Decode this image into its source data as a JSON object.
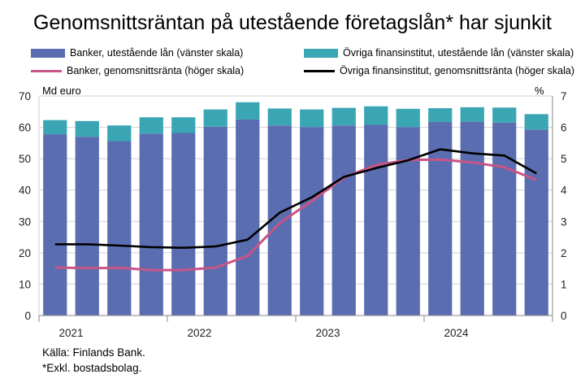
{
  "title": "Genomsnittsräntan på utestående företagslån* har sjunkit",
  "legend": {
    "banks_loans": "Banker, utestående lån (vänster skala)",
    "other_loans": "Övriga finansinstitut, utestående lån (vänster skala)",
    "banks_rate": "Banker, genomsnittsränta (höger skala)",
    "other_rate": "Övriga finansinstitut, genomsnittsränta (höger skala)"
  },
  "left_unit": "Md euro",
  "right_unit": "%",
  "source": "Källa: Finlands Bank.",
  "footnote": "*Exkl. bostadsbolag.",
  "colors": {
    "banks_bar": "#5b6db1",
    "other_bar": "#3aa6b4",
    "banks_line": "#c75586",
    "other_line": "#000000",
    "grid": "#d0d0d0"
  },
  "chart_data": {
    "type": "bar",
    "stacked": true,
    "categories": [
      "2021Q1",
      "2021Q2",
      "2021Q3",
      "2021Q4",
      "2022Q1",
      "2022Q2",
      "2022Q3",
      "2022Q4",
      "2023Q1",
      "2023Q2",
      "2023Q3",
      "2023Q4",
      "2024Q1",
      "2024Q2",
      "2024Q3",
      "2024Q4"
    ],
    "x_tick_labels": [
      "2021",
      "2022",
      "2023",
      "2024"
    ],
    "ylim_left": [
      0,
      70
    ],
    "yticks_left": [
      0,
      10,
      20,
      30,
      40,
      50,
      60,
      70
    ],
    "ylim_right": [
      0,
      7
    ],
    "yticks_right": [
      0,
      1,
      2,
      3,
      4,
      5,
      6,
      7
    ],
    "grid": true,
    "legend_position": "top",
    "bar_series": [
      {
        "name": "Banker, utestående lån (vänster skala)",
        "axis": "left",
        "values": [
          57.8,
          57.0,
          55.6,
          58.0,
          58.2,
          60.2,
          62.5,
          60.6,
          60.1,
          60.6,
          60.8,
          60.1,
          61.7,
          61.8,
          61.5,
          59.3
        ]
      },
      {
        "name": "Övriga finansinstitut, utestående lån (vänster skala)",
        "axis": "left",
        "values": [
          4.5,
          5.0,
          5.0,
          5.2,
          5.0,
          5.5,
          5.5,
          5.4,
          5.6,
          5.6,
          5.9,
          5.8,
          4.4,
          4.6,
          4.8,
          4.9
        ]
      }
    ],
    "line_series": [
      {
        "name": "Banker, genomsnittsränta (höger skala)",
        "axis": "right",
        "values": [
          1.53,
          1.51,
          1.52,
          1.45,
          1.45,
          1.53,
          1.9,
          2.95,
          3.65,
          4.4,
          4.8,
          4.96,
          4.97,
          4.88,
          4.73,
          4.32
        ]
      },
      {
        "name": "Övriga finansinstitut, genomsnittsränta (höger skala)",
        "axis": "right",
        "values": [
          2.27,
          2.27,
          2.23,
          2.18,
          2.16,
          2.2,
          2.42,
          3.28,
          3.77,
          4.42,
          4.7,
          4.95,
          5.3,
          5.17,
          5.1,
          4.53
        ]
      }
    ]
  }
}
